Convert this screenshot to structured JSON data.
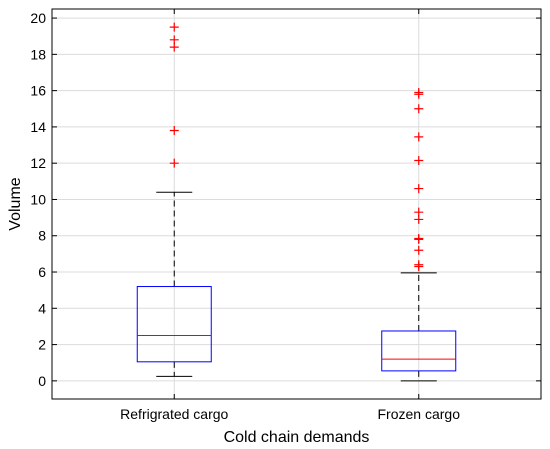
{
  "chart_data": {
    "type": "box",
    "title": "",
    "xlabel": "Cold chain demands",
    "ylabel": "Volume",
    "ylim": [
      -1,
      20.5
    ],
    "yticks": [
      0,
      2,
      4,
      6,
      8,
      10,
      12,
      14,
      16,
      18,
      20
    ],
    "grid": true,
    "categories": [
      "Refrigrated cargo",
      "Frozen cargo"
    ],
    "boxes": [
      {
        "category": "Refrigrated cargo",
        "whisker_low": 0.25,
        "q1": 1.05,
        "median": 2.5,
        "q3": 5.2,
        "whisker_high": 10.4,
        "outliers": [
          12.0,
          13.8,
          18.4,
          18.8,
          19.5
        ]
      },
      {
        "category": "Frozen cargo",
        "whisker_low": 0.0,
        "q1": 0.55,
        "median": 1.2,
        "q3": 2.75,
        "whisker_high": 5.95,
        "outliers": [
          6.3,
          6.4,
          7.2,
          7.8,
          7.85,
          8.9,
          9.3,
          10.6,
          12.15,
          13.45,
          15.0,
          15.8,
          15.9
        ]
      }
    ],
    "colors": {
      "box": "#0000ff",
      "median": "#ff0000",
      "outlier": "#ff0000",
      "whisker": "#000000",
      "grid": "#dcdcdc"
    }
  }
}
